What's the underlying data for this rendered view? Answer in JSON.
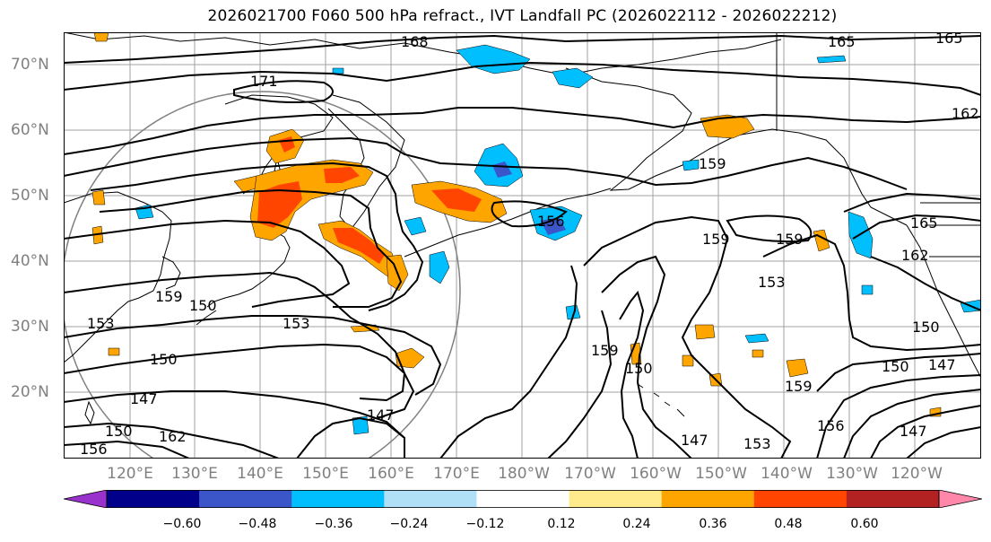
{
  "title": "2026021700 F060 500 hPa refract., IVT Landfall PC (2026022112 - 2026022212)",
  "lat_labels": [
    "70°N",
    "60°N",
    "50°N",
    "40°N",
    "30°N",
    "20°N"
  ],
  "lon_labels": [
    "120°E",
    "130°E",
    "140°E",
    "150°E",
    "160°E",
    "170°E",
    "180°W",
    "170°W",
    "160°W",
    "150°W",
    "140°W",
    "130°W",
    "120°W"
  ],
  "contour_labels": [
    "168",
    "165",
    "165",
    "171",
    "162",
    "159",
    "156",
    "159",
    "159",
    "165",
    "162",
    "153",
    "150",
    "153",
    "159",
    "150",
    "153",
    "150",
    "147",
    "159",
    "159",
    "150",
    "150",
    "147",
    "147",
    "156",
    "147",
    "147",
    "153",
    "150",
    "162",
    "156"
  ],
  "colorbar": {
    "ticks": [
      "−0.60",
      "−0.48",
      "−0.36",
      "−0.24",
      "−0.12",
      "0.12",
      "0.24",
      "0.36",
      "0.48",
      "0.60"
    ],
    "colors": [
      "#9932cc",
      "#00008b",
      "#3a56c8",
      "#00bfff",
      "#b0e0f8",
      "#ffffff",
      "#ffea8c",
      "#ffa500",
      "#ff4500",
      "#b22222",
      "#ff88aa"
    ]
  },
  "colors": {
    "positive_fill": "#ffa500",
    "positive_light": "#ffea8c",
    "positive_strong": "#ff4500",
    "negative_fill": "#00bfff",
    "negative_strong": "#3a56c8",
    "grid": "#a0a0a0",
    "circle": "#808080"
  }
}
